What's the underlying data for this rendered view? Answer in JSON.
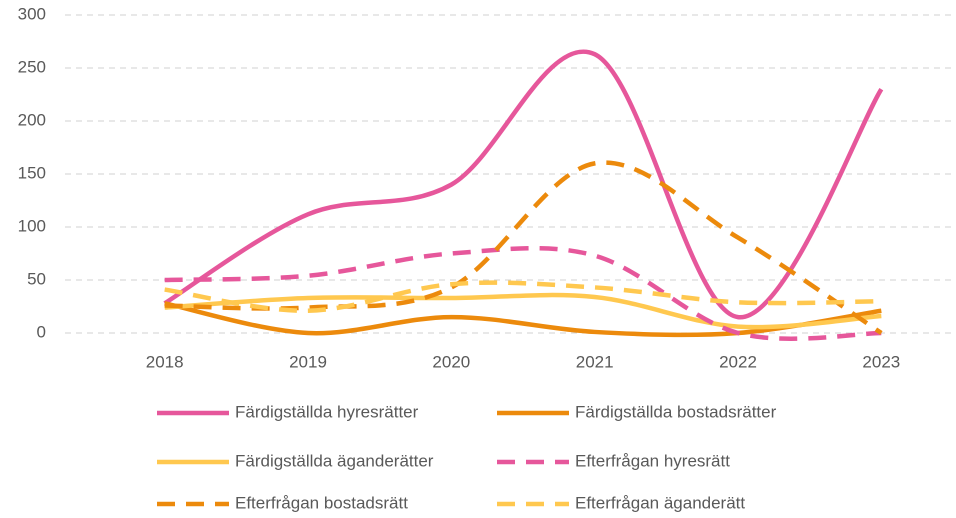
{
  "chart_data": {
    "type": "line",
    "smooth": true,
    "categories": [
      "2018",
      "2019",
      "2020",
      "2021",
      "2022",
      "2023"
    ],
    "series": [
      {
        "name": "Färdigställda hyresrätter",
        "color": "#e6579b",
        "dash": false,
        "values": [
          28,
          112,
          140,
          263,
          15,
          230
        ]
      },
      {
        "name": "Färdigställda bostadsrätter",
        "color": "#ec8a0c",
        "dash": false,
        "values": [
          28,
          0,
          15,
          1,
          0,
          21
        ]
      },
      {
        "name": "Färdigställda äganderätter",
        "color": "#ffc84f",
        "dash": false,
        "values": [
          24,
          33,
          33,
          34,
          6,
          16
        ]
      },
      {
        "name": "Efterfrågan hyresrätt",
        "color": "#e6579b",
        "dash": true,
        "values": [
          50,
          54,
          75,
          73,
          0,
          0
        ]
      },
      {
        "name": "Efterfrågan bostadsrätt",
        "color": "#ec8a0c",
        "dash": true,
        "values": [
          26,
          24,
          43,
          160,
          90,
          0
        ]
      },
      {
        "name": "Efterfrågan äganderätt",
        "color": "#ffc84f",
        "dash": true,
        "values": [
          41,
          21,
          46,
          43,
          29,
          30
        ]
      }
    ],
    "ylim": [
      0,
      300
    ],
    "yticks": [
      0,
      50,
      100,
      150,
      200,
      250,
      300
    ],
    "grid": true,
    "legend": "bottom"
  }
}
